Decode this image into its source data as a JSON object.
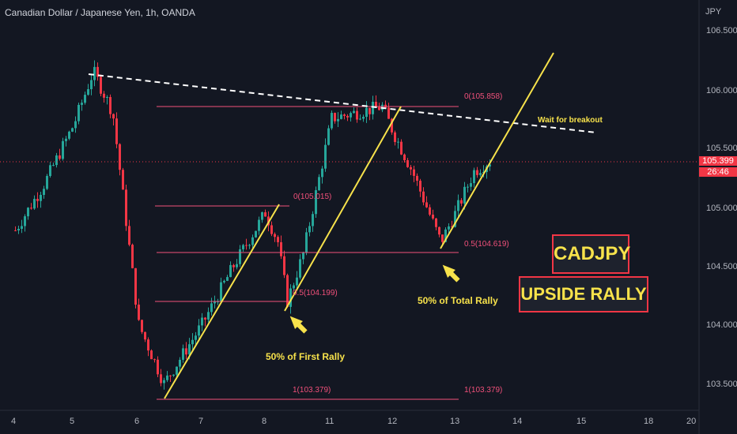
{
  "header": {
    "title": "Canadian Dollar / Japanese Yen, 1h, OANDA",
    "currency": "JPY"
  },
  "y_axis": [
    "106.500",
    "106.000",
    "105.500",
    "105.000",
    "104.500",
    "104.000",
    "103.500"
  ],
  "x_axis": [
    "4",
    "5",
    "6",
    "7",
    "8",
    "11",
    "12",
    "13",
    "14",
    "15",
    "18",
    "20"
  ],
  "price_badge": {
    "price": "105.399",
    "countdown": "26:46"
  },
  "labels": {
    "box_symbol": "CADJPY",
    "box_rally": "UPSIDE RALLY",
    "wait": "Wait for breakout",
    "first_rally": "50% of First Rally",
    "total_rally": "50% of Total Rally",
    "fib_top": "0(105.858)",
    "fib_first_0": "0(105.015)",
    "fib_first_05": "0.5(104.199)",
    "fib_total_05": "0.5(104.619)",
    "fib_1_left": "1(103.379)",
    "fib_1_right": "1(103.379)"
  },
  "colors": {
    "up": "#26a69a",
    "down": "#f23645",
    "trend": "#f7e24b",
    "fib": "#f0507a",
    "dashed": "#ffffff"
  },
  "chart_data": {
    "type": "candlestick",
    "title": "Canadian Dollar / Japanese Yen, 1h, OANDA",
    "ylabel": "JPY",
    "ylim": [
      103.35,
      106.55
    ],
    "last_price": 105.399,
    "close_path": [
      {
        "x": "4",
        "y": 104.8
      },
      {
        "x": "4.5",
        "y": 105.2
      },
      {
        "x": "5",
        "y": 105.7
      },
      {
        "x": "5.3",
        "y": 106.15
      },
      {
        "x": "5.6",
        "y": 105.8
      },
      {
        "x": "6",
        "y": 104.0
      },
      {
        "x": "6.4",
        "y": 103.5
      },
      {
        "x": "7",
        "y": 104.0
      },
      {
        "x": "7.5",
        "y": 104.5
      },
      {
        "x": "8",
        "y": 104.95
      },
      {
        "x": "8.2",
        "y": 104.7
      },
      {
        "x": "8.35",
        "y": 104.2
      },
      {
        "x": "8.6",
        "y": 104.6
      },
      {
        "x": "11",
        "y": 105.75
      },
      {
        "x": "11.8",
        "y": 105.85
      },
      {
        "x": "12.3",
        "y": 105.3
      },
      {
        "x": "12.8",
        "y": 104.7
      },
      {
        "x": "13.3",
        "y": 105.3
      },
      {
        "x": "13.6",
        "y": 105.399
      }
    ],
    "levels": [
      {
        "label": "0(105.858)",
        "value": 105.858
      },
      {
        "label": "0(105.015)",
        "value": 105.015
      },
      {
        "label": "0.5(104.199)",
        "value": 104.199
      },
      {
        "label": "0.5(104.619)",
        "value": 104.619
      },
      {
        "label": "1(103.379)",
        "value": 103.379
      }
    ]
  }
}
